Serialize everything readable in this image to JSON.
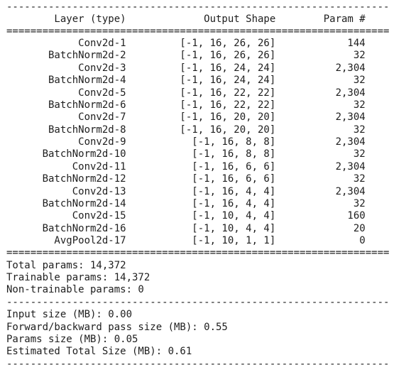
{
  "summary": {
    "rule_dash": "----------------------------------------------------------------",
    "rule_eq": "================================================================",
    "header": {
      "layer": "Layer (type)",
      "output_shape": "Output Shape",
      "params": "Param #"
    },
    "layers": [
      {
        "name": "Conv2d-1",
        "shape": "[-1, 16, 26, 26]",
        "params": "144"
      },
      {
        "name": "BatchNorm2d-2",
        "shape": "[-1, 16, 26, 26]",
        "params": "32"
      },
      {
        "name": "Conv2d-3",
        "shape": "[-1, 16, 24, 24]",
        "params": "2,304"
      },
      {
        "name": "BatchNorm2d-4",
        "shape": "[-1, 16, 24, 24]",
        "params": "32"
      },
      {
        "name": "Conv2d-5",
        "shape": "[-1, 16, 22, 22]",
        "params": "2,304"
      },
      {
        "name": "BatchNorm2d-6",
        "shape": "[-1, 16, 22, 22]",
        "params": "32"
      },
      {
        "name": "Conv2d-7",
        "shape": "[-1, 16, 20, 20]",
        "params": "2,304"
      },
      {
        "name": "BatchNorm2d-8",
        "shape": "[-1, 16, 20, 20]",
        "params": "32"
      },
      {
        "name": "Conv2d-9",
        "shape": "[-1, 16, 8, 8]",
        "params": "2,304"
      },
      {
        "name": "BatchNorm2d-10",
        "shape": "[-1, 16, 8, 8]",
        "params": "32"
      },
      {
        "name": "Conv2d-11",
        "shape": "[-1, 16, 6, 6]",
        "params": "2,304"
      },
      {
        "name": "BatchNorm2d-12",
        "shape": "[-1, 16, 6, 6]",
        "params": "32"
      },
      {
        "name": "Conv2d-13",
        "shape": "[-1, 16, 4, 4]",
        "params": "2,304"
      },
      {
        "name": "BatchNorm2d-14",
        "shape": "[-1, 16, 4, 4]",
        "params": "32"
      },
      {
        "name": "Conv2d-15",
        "shape": "[-1, 10, 4, 4]",
        "params": "160"
      },
      {
        "name": "BatchNorm2d-16",
        "shape": "[-1, 10, 4, 4]",
        "params": "20"
      },
      {
        "name": "AvgPool2d-17",
        "shape": "[-1, 10, 1, 1]",
        "params": "0"
      }
    ],
    "totals": {
      "total_params": "Total params: 14,372",
      "trainable_params": "Trainable params: 14,372",
      "non_trainable_params": "Non-trainable params: 0"
    },
    "sizes": {
      "input_size": "Input size (MB): 0.00",
      "forward_backward_size": "Forward/backward pass size (MB): 0.55",
      "params_size": "Params size (MB): 0.05",
      "estimated_total_size": "Estimated Total Size (MB): 0.61"
    }
  }
}
